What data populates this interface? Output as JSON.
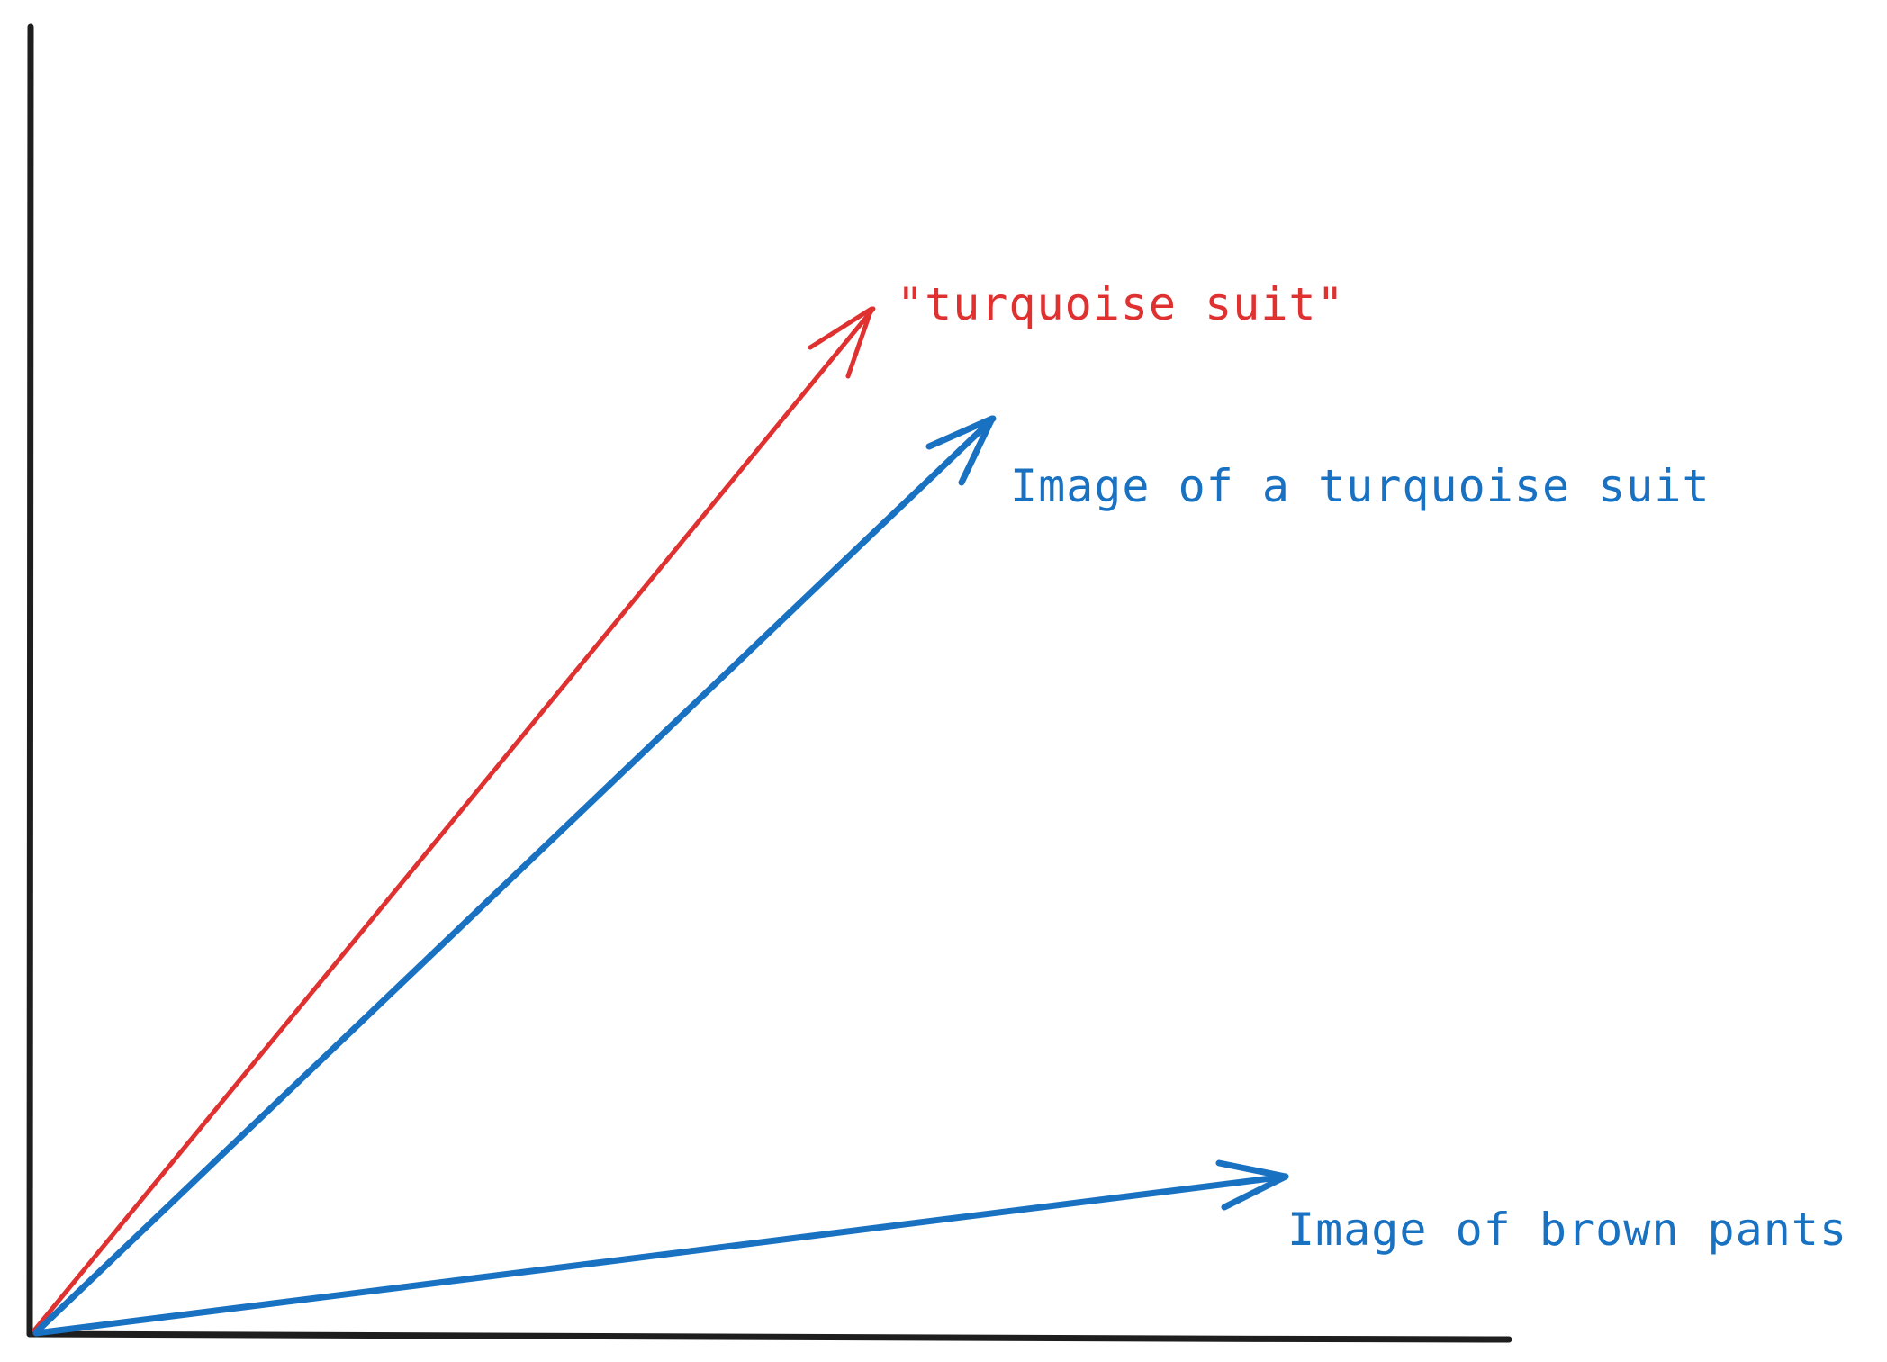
{
  "colors": {
    "axis": "#1e1e1e",
    "text_vector": "#e03131",
    "image_vector": "#1971c2"
  },
  "vectors": [
    {
      "key": "text_suit",
      "label": "\"turquoise suit\"",
      "color": "#e03131"
    },
    {
      "key": "image_suit",
      "label": "Image of a turquoise suit",
      "color": "#1971c2"
    },
    {
      "key": "image_pants",
      "label": "Image of brown pants",
      "color": "#1971c2"
    }
  ]
}
